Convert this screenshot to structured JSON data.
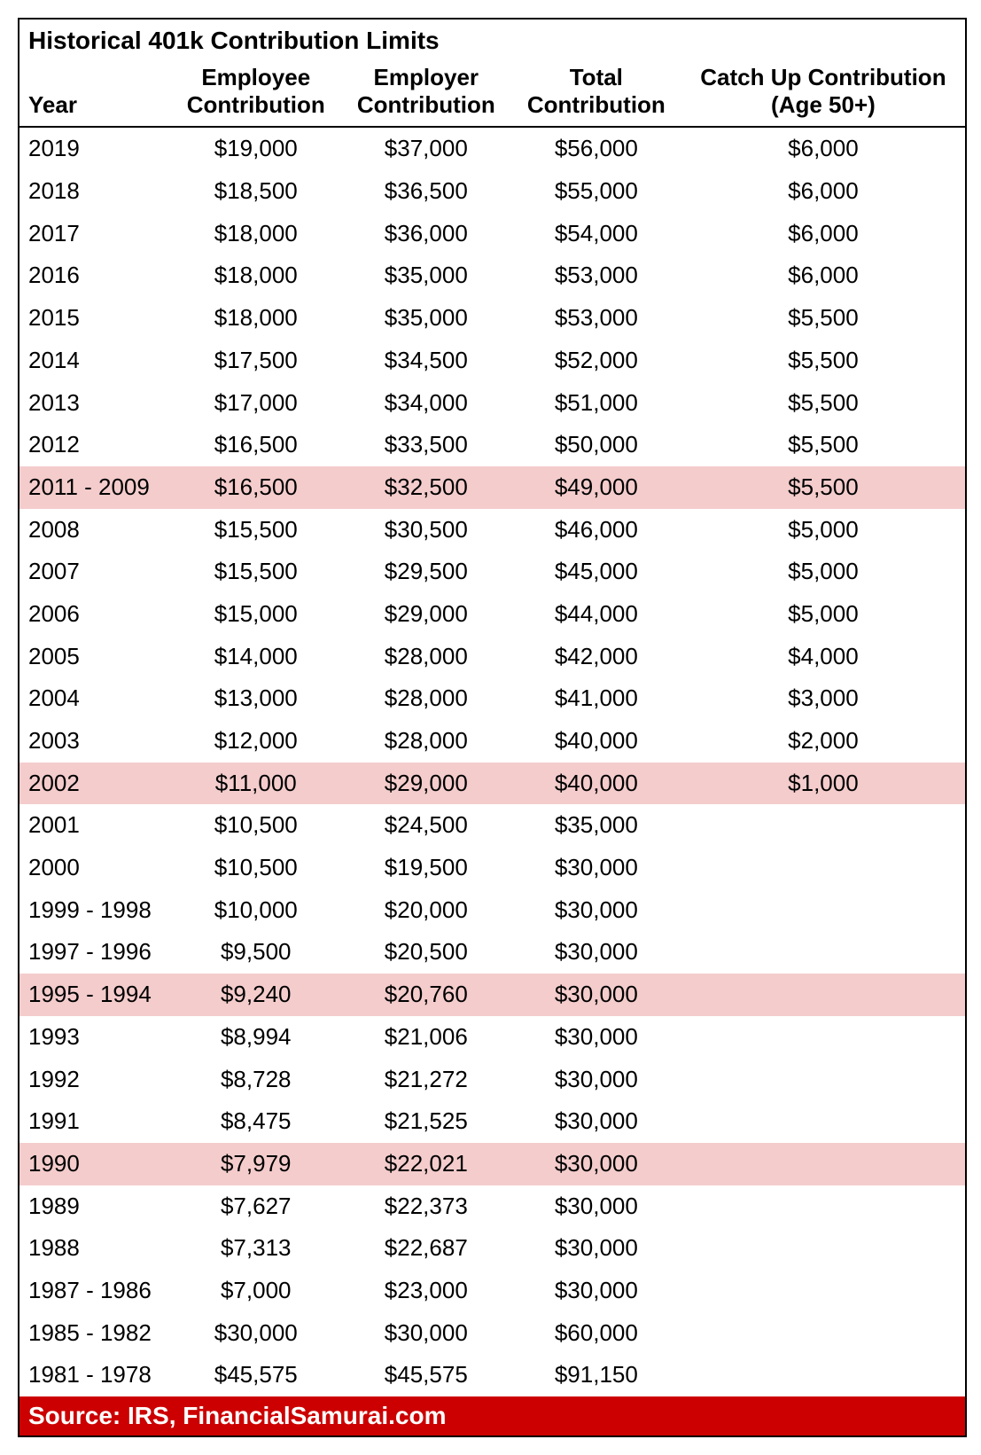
{
  "title": "Historical 401k Contribution Limits",
  "source_label": "Source: IRS, FinancialSamurai.com",
  "colors": {
    "border": "#000000",
    "background": "#ffffff",
    "highlight_row": "#f4cccc",
    "source_bar_bg": "#cc0000",
    "source_bar_text": "#ffffff",
    "text": "#000000"
  },
  "typography": {
    "title_fontsize_pt": 21,
    "header_fontsize_pt": 20,
    "body_fontsize_pt": 20,
    "source_fontsize_pt": 21,
    "font_family": "Arial"
  },
  "table": {
    "type": "table",
    "columns": [
      {
        "key": "year",
        "label": "Year",
        "align": "left",
        "width_pct": 16
      },
      {
        "key": "employee",
        "label": "Employee Contribution",
        "align": "center",
        "width_pct": 18
      },
      {
        "key": "employer",
        "label": "Employer Contribution",
        "align": "center",
        "width_pct": 18
      },
      {
        "key": "total",
        "label": "Total Contribution",
        "align": "center",
        "width_pct": 18
      },
      {
        "key": "catchup",
        "label": "Catch Up Contribution (Age 50+)",
        "align": "center",
        "width_pct": 30
      }
    ],
    "rows": [
      {
        "year": "2019",
        "employee": "$19,000",
        "employer": "$37,000",
        "total": "$56,000",
        "catchup": "$6,000",
        "highlight": false
      },
      {
        "year": "2018",
        "employee": "$18,500",
        "employer": "$36,500",
        "total": "$55,000",
        "catchup": "$6,000",
        "highlight": false
      },
      {
        "year": "2017",
        "employee": "$18,000",
        "employer": "$36,000",
        "total": "$54,000",
        "catchup": "$6,000",
        "highlight": false
      },
      {
        "year": "2016",
        "employee": "$18,000",
        "employer": "$35,000",
        "total": "$53,000",
        "catchup": "$6,000",
        "highlight": false
      },
      {
        "year": "2015",
        "employee": "$18,000",
        "employer": "$35,000",
        "total": "$53,000",
        "catchup": "$5,500",
        "highlight": false
      },
      {
        "year": "2014",
        "employee": "$17,500",
        "employer": "$34,500",
        "total": "$52,000",
        "catchup": "$5,500",
        "highlight": false
      },
      {
        "year": "2013",
        "employee": "$17,000",
        "employer": "$34,000",
        "total": "$51,000",
        "catchup": "$5,500",
        "highlight": false
      },
      {
        "year": "2012",
        "employee": "$16,500",
        "employer": "$33,500",
        "total": "$50,000",
        "catchup": "$5,500",
        "highlight": false
      },
      {
        "year": "2011 - 2009",
        "employee": "$16,500",
        "employer": "$32,500",
        "total": "$49,000",
        "catchup": "$5,500",
        "highlight": true
      },
      {
        "year": "2008",
        "employee": "$15,500",
        "employer": "$30,500",
        "total": "$46,000",
        "catchup": "$5,000",
        "highlight": false
      },
      {
        "year": "2007",
        "employee": "$15,500",
        "employer": "$29,500",
        "total": "$45,000",
        "catchup": "$5,000",
        "highlight": false
      },
      {
        "year": "2006",
        "employee": "$15,000",
        "employer": "$29,000",
        "total": "$44,000",
        "catchup": "$5,000",
        "highlight": false
      },
      {
        "year": "2005",
        "employee": "$14,000",
        "employer": "$28,000",
        "total": "$42,000",
        "catchup": "$4,000",
        "highlight": false
      },
      {
        "year": "2004",
        "employee": "$13,000",
        "employer": "$28,000",
        "total": "$41,000",
        "catchup": "$3,000",
        "highlight": false
      },
      {
        "year": "2003",
        "employee": "$12,000",
        "employer": "$28,000",
        "total": "$40,000",
        "catchup": "$2,000",
        "highlight": false
      },
      {
        "year": "2002",
        "employee": "$11,000",
        "employer": "$29,000",
        "total": "$40,000",
        "catchup": "$1,000",
        "highlight": true
      },
      {
        "year": "2001",
        "employee": "$10,500",
        "employer": "$24,500",
        "total": "$35,000",
        "catchup": "",
        "highlight": false
      },
      {
        "year": "2000",
        "employee": "$10,500",
        "employer": "$19,500",
        "total": "$30,000",
        "catchup": "",
        "highlight": false
      },
      {
        "year": "1999 - 1998",
        "employee": "$10,000",
        "employer": "$20,000",
        "total": "$30,000",
        "catchup": "",
        "highlight": false
      },
      {
        "year": "1997 - 1996",
        "employee": "$9,500",
        "employer": "$20,500",
        "total": "$30,000",
        "catchup": "",
        "highlight": false
      },
      {
        "year": "1995 - 1994",
        "employee": "$9,240",
        "employer": "$20,760",
        "total": "$30,000",
        "catchup": "",
        "highlight": true
      },
      {
        "year": "1993",
        "employee": "$8,994",
        "employer": "$21,006",
        "total": "$30,000",
        "catchup": "",
        "highlight": false
      },
      {
        "year": "1992",
        "employee": "$8,728",
        "employer": "$21,272",
        "total": "$30,000",
        "catchup": "",
        "highlight": false
      },
      {
        "year": "1991",
        "employee": "$8,475",
        "employer": "$21,525",
        "total": "$30,000",
        "catchup": "",
        "highlight": false
      },
      {
        "year": "1990",
        "employee": "$7,979",
        "employer": "$22,021",
        "total": "$30,000",
        "catchup": "",
        "highlight": true
      },
      {
        "year": "1989",
        "employee": "$7,627",
        "employer": "$22,373",
        "total": "$30,000",
        "catchup": "",
        "highlight": false
      },
      {
        "year": "1988",
        "employee": "$7,313",
        "employer": "$22,687",
        "total": "$30,000",
        "catchup": "",
        "highlight": false
      },
      {
        "year": "1987 - 1986",
        "employee": "$7,000",
        "employer": "$23,000",
        "total": "$30,000",
        "catchup": "",
        "highlight": false
      },
      {
        "year": "1985 - 1982",
        "employee": "$30,000",
        "employer": "$30,000",
        "total": "$60,000",
        "catchup": "",
        "highlight": false
      },
      {
        "year": "1981 - 1978",
        "employee": "$45,575",
        "employer": "$45,575",
        "total": "$91,150",
        "catchup": "",
        "highlight": false
      }
    ]
  }
}
